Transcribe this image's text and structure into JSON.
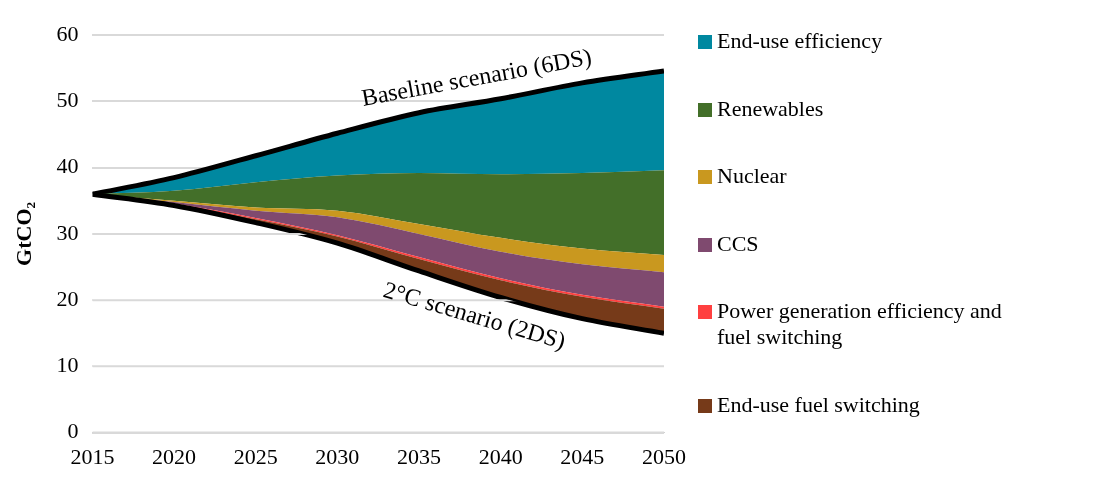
{
  "chart_data": {
    "type": "area",
    "stacked": true,
    "ylabel": "GtCO₂",
    "x": [
      2015,
      2020,
      2025,
      2030,
      2035,
      2040,
      2045,
      2050
    ],
    "xlim": [
      2015,
      2050
    ],
    "xticks": [
      2015,
      2020,
      2025,
      2030,
      2035,
      2040,
      2045,
      2050
    ],
    "ylim": [
      0,
      60
    ],
    "yticks": [
      0,
      10,
      20,
      30,
      40,
      50,
      60
    ],
    "grid": "y",
    "legend": "right",
    "annotations": [
      {
        "text": "Baseline scenario (6DS)",
        "x": 2040,
        "y": 50.4
      },
      {
        "text": "2°C scenario (2DS)",
        "x": 2040,
        "y": 20.4
      }
    ],
    "series": [
      {
        "color": "#ffffff",
        "values": [
          36,
          34.3,
          31.7,
          28.6,
          24.4,
          20.4,
          17.2,
          15.0
        ]
      },
      {
        "name": "End-use fuel switching",
        "color": "#763a19",
        "values": [
          0,
          0.2,
          0.5,
          1.0,
          1.8,
          2.6,
          3.3,
          3.7
        ]
      },
      {
        "name": "Power generation efficiency and fuel switching",
        "color": "#ff4040",
        "values": [
          0,
          0.1,
          0.2,
          0.2,
          0.3,
          0.3,
          0.3,
          0.3
        ]
      },
      {
        "name": "CCS",
        "color": "#7f4a6f",
        "values": [
          0,
          0.2,
          1.1,
          2.7,
          3.5,
          4.0,
          4.6,
          5.2
        ]
      },
      {
        "name": "Nuclear",
        "color": "#c9981f",
        "values": [
          0,
          0.2,
          0.5,
          1.0,
          1.5,
          2.1,
          2.4,
          2.6
        ]
      },
      {
        "name": "Renewables",
        "color": "#436f29",
        "values": [
          0,
          1.5,
          3.8,
          5.3,
          7.7,
          9.6,
          11.4,
          12.8
        ]
      },
      {
        "name": "End-use efficiency",
        "color": "#0088a0",
        "values": [
          0,
          2.0,
          4.0,
          6.4,
          9.1,
          11.4,
          13.6,
          15.0
        ]
      }
    ]
  }
}
